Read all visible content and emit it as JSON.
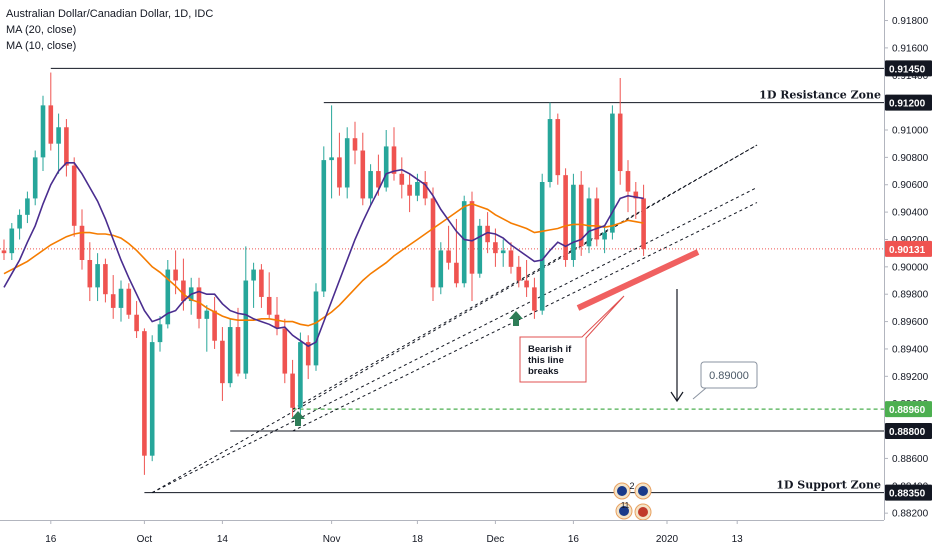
{
  "legend": {
    "title": "Australian Dollar/Canadian Dollar, 1D, IDC",
    "ma20": "MA (20, close)",
    "ma10": "MA (10, close)"
  },
  "colors": {
    "bull": "#26a69a",
    "bear": "#ef5350",
    "ma10": "#4a2d8f",
    "ma20": "#f57c00",
    "last_price": "#ef5350",
    "support_target": "#4caf50",
    "trend_zone": "#f06060"
  },
  "chart_data": {
    "type": "candlestick",
    "title": "Australian Dollar/Canadian Dollar, 1D, IDC",
    "y_axis": {
      "range": [
        0.8815,
        0.9195
      ],
      "ticks": [
        0.918,
        0.916,
        0.914,
        0.912,
        0.91,
        0.908,
        0.906,
        0.904,
        0.902,
        0.9,
        0.898,
        0.896,
        0.894,
        0.892,
        0.89,
        0.888,
        0.886,
        0.884,
        0.882
      ],
      "tick_labels": [
        "0.91800",
        "0.91600",
        "0.91400",
        "0.91200",
        "0.91000",
        "0.90800",
        "0.90600",
        "0.90400",
        "0.90200",
        "0.90000",
        "0.89800",
        "0.89600",
        "0.89400",
        "0.89200",
        "0.89000",
        "0.88800",
        "0.88600",
        "0.88400",
        "0.88200"
      ]
    },
    "x_axis": {
      "tick_labels": [
        {
          "label": "16",
          "bar": 6
        },
        {
          "label": "Oct",
          "bar": 18
        },
        {
          "label": "14",
          "bar": 28
        },
        {
          "label": "Nov",
          "bar": 42
        },
        {
          "label": "18",
          "bar": 53
        },
        {
          "label": "Dec",
          "bar": 63
        },
        {
          "label": "16",
          "bar": 73
        },
        {
          "label": "2020",
          "bar": 85
        },
        {
          "label": "13",
          "bar": 94
        }
      ]
    },
    "candles": [
      [
        0.9012,
        0.902,
        0.9005,
        0.901
      ],
      [
        0.901,
        0.9032,
        0.9005,
        0.9028
      ],
      [
        0.9028,
        0.9042,
        0.902,
        0.9038
      ],
      [
        0.9038,
        0.9055,
        0.9032,
        0.905
      ],
      [
        0.905,
        0.9085,
        0.9045,
        0.908
      ],
      [
        0.908,
        0.9125,
        0.907,
        0.9118
      ],
      [
        0.9118,
        0.9142,
        0.9085,
        0.909
      ],
      [
        0.909,
        0.9112,
        0.9068,
        0.9102
      ],
      [
        0.9102,
        0.9108,
        0.9066,
        0.9074
      ],
      [
        0.9074,
        0.908,
        0.9022,
        0.903
      ],
      [
        0.903,
        0.9042,
        0.8998,
        0.9005
      ],
      [
        0.9005,
        0.9018,
        0.8975,
        0.8985
      ],
      [
        0.8985,
        0.901,
        0.8975,
        0.9002
      ],
      [
        0.9002,
        0.9006,
        0.8974,
        0.898
      ],
      [
        0.898,
        0.8994,
        0.8962,
        0.897
      ],
      [
        0.897,
        0.899,
        0.896,
        0.8984
      ],
      [
        0.8984,
        0.8988,
        0.8962,
        0.8965
      ],
      [
        0.8965,
        0.8975,
        0.8948,
        0.8953
      ],
      [
        0.8953,
        0.8955,
        0.8848,
        0.8862
      ],
      [
        0.8862,
        0.895,
        0.8858,
        0.8945
      ],
      [
        0.8945,
        0.8964,
        0.8938,
        0.8958
      ],
      [
        0.8958,
        0.9005,
        0.8955,
        0.8998
      ],
      [
        0.8998,
        0.9012,
        0.898,
        0.899
      ],
      [
        0.899,
        0.9006,
        0.8968,
        0.8975
      ],
      [
        0.8975,
        0.8992,
        0.8965,
        0.8985
      ],
      [
        0.8985,
        0.8992,
        0.8955,
        0.8962
      ],
      [
        0.8962,
        0.8972,
        0.8938,
        0.8968
      ],
      [
        0.8968,
        0.8978,
        0.894,
        0.8946
      ],
      [
        0.8946,
        0.8956,
        0.8902,
        0.8915
      ],
      [
        0.8915,
        0.8962,
        0.8912,
        0.8956
      ],
      [
        0.8956,
        0.897,
        0.892,
        0.8922
      ],
      [
        0.8922,
        0.9015,
        0.8918,
        0.899
      ],
      [
        0.899,
        0.9003,
        0.897,
        0.8998
      ],
      [
        0.8998,
        0.9002,
        0.897,
        0.8978
      ],
      [
        0.8978,
        0.8996,
        0.8962,
        0.8965
      ],
      [
        0.8965,
        0.8978,
        0.895,
        0.8955
      ],
      [
        0.8955,
        0.8962,
        0.8915,
        0.8922
      ],
      [
        0.8922,
        0.8932,
        0.889,
        0.8897
      ],
      [
        0.8897,
        0.8952,
        0.889,
        0.8945
      ],
      [
        0.8945,
        0.895,
        0.8918,
        0.8928
      ],
      [
        0.8928,
        0.8988,
        0.8924,
        0.8982
      ],
      [
        0.8982,
        0.9088,
        0.8978,
        0.9078
      ],
      [
        0.9078,
        0.9118,
        0.905,
        0.908
      ],
      [
        0.908,
        0.9098,
        0.9052,
        0.9058
      ],
      [
        0.9058,
        0.9102,
        0.905,
        0.9094
      ],
      [
        0.9094,
        0.9106,
        0.9075,
        0.9085
      ],
      [
        0.9085,
        0.9098,
        0.9045,
        0.905
      ],
      [
        0.905,
        0.9075,
        0.9045,
        0.907
      ],
      [
        0.907,
        0.9082,
        0.9052,
        0.9058
      ],
      [
        0.9058,
        0.91,
        0.9055,
        0.9088
      ],
      [
        0.9088,
        0.9102,
        0.9063,
        0.9068
      ],
      [
        0.9068,
        0.908,
        0.905,
        0.906
      ],
      [
        0.906,
        0.9068,
        0.904,
        0.9052
      ],
      [
        0.9052,
        0.9068,
        0.9048,
        0.9062
      ],
      [
        0.9062,
        0.907,
        0.9045,
        0.905
      ],
      [
        0.905,
        0.9058,
        0.8975,
        0.8985
      ],
      [
        0.8985,
        0.9018,
        0.898,
        0.9012
      ],
      [
        0.9012,
        0.903,
        0.8998,
        0.9003
      ],
      [
        0.9003,
        0.9035,
        0.8985,
        0.8988
      ],
      [
        0.8988,
        0.9052,
        0.8985,
        0.9048
      ],
      [
        0.9048,
        0.9055,
        0.8975,
        0.8995
      ],
      [
        0.8995,
        0.9035,
        0.8992,
        0.903
      ],
      [
        0.903,
        0.904,
        0.901,
        0.9018
      ],
      [
        0.9018,
        0.9028,
        0.9,
        0.901
      ],
      [
        0.901,
        0.902,
        0.9,
        0.9012
      ],
      [
        0.9012,
        0.9018,
        0.8995,
        0.9
      ],
      [
        0.9,
        0.9008,
        0.8985,
        0.899
      ],
      [
        0.899,
        0.9005,
        0.8978,
        0.8985
      ],
      [
        0.8985,
        0.8992,
        0.8962,
        0.8968
      ],
      [
        0.8968,
        0.9068,
        0.8965,
        0.9062
      ],
      [
        0.9062,
        0.912,
        0.9058,
        0.9108
      ],
      [
        0.9108,
        0.9112,
        0.906,
        0.9067
      ],
      [
        0.9067,
        0.9072,
        0.9,
        0.9005
      ],
      [
        0.9005,
        0.9068,
        0.9,
        0.906
      ],
      [
        0.906,
        0.907,
        0.9008,
        0.9015
      ],
      [
        0.9015,
        0.9058,
        0.901,
        0.905
      ],
      [
        0.905,
        0.9058,
        0.9015,
        0.902
      ],
      [
        0.902,
        0.903,
        0.901,
        0.9025
      ],
      [
        0.9025,
        0.9118,
        0.902,
        0.9112
      ],
      [
        0.9112,
        0.9138,
        0.906,
        0.907
      ],
      [
        0.907,
        0.9078,
        0.904,
        0.9055
      ],
      [
        0.9055,
        0.9062,
        0.9035,
        0.905
      ],
      [
        0.905,
        0.906,
        0.9008,
        0.9013
      ]
    ],
    "ma10": [
      0.8985,
      0.8995,
      0.9005,
      0.9018,
      0.903,
      0.9046,
      0.906,
      0.907,
      0.9076,
      0.9076,
      0.9068,
      0.9058,
      0.9048,
      0.9035,
      0.902,
      0.9005,
      0.8992,
      0.898,
      0.8968,
      0.896,
      0.8962,
      0.8966,
      0.8968,
      0.8975,
      0.898,
      0.8982,
      0.898,
      0.898,
      0.8973,
      0.8968,
      0.8966,
      0.8965,
      0.8962,
      0.896,
      0.8958,
      0.8955,
      0.8956,
      0.895,
      0.8946,
      0.8942,
      0.8945,
      0.896,
      0.8975,
      0.899,
      0.9005,
      0.902,
      0.9033,
      0.9045,
      0.9056,
      0.9068,
      0.907,
      0.9071,
      0.9068,
      0.9064,
      0.906,
      0.9052,
      0.9042,
      0.9034,
      0.9026,
      0.902,
      0.9019,
      0.9022,
      0.9025,
      0.9024,
      0.9021,
      0.9016,
      0.9012,
      0.9008,
      0.9004,
      0.9005,
      0.9012,
      0.9018,
      0.9015,
      0.9018,
      0.902,
      0.9026,
      0.9028,
      0.903,
      0.904,
      0.905,
      0.9052,
      0.9051,
      0.905
    ],
    "ma20": [
      0.8995,
      0.8998,
      0.9001,
      0.9004,
      0.9008,
      0.9012,
      0.9016,
      0.9019,
      0.9022,
      0.9024,
      0.9025,
      0.9025,
      0.9024,
      0.9024,
      0.9023,
      0.9021,
      0.9017,
      0.9012,
      0.9006,
      0.9,
      0.8996,
      0.8991,
      0.8986,
      0.898,
      0.8976,
      0.8974,
      0.897,
      0.8967,
      0.8964,
      0.8962,
      0.8961,
      0.8961,
      0.8961,
      0.8962,
      0.8962,
      0.8961,
      0.896,
      0.896,
      0.8958,
      0.8957,
      0.8959,
      0.8963,
      0.8967,
      0.8972,
      0.8978,
      0.8984,
      0.899,
      0.8995,
      0.8999,
      0.9003,
      0.9008,
      0.9012,
      0.9016,
      0.902,
      0.9024,
      0.9028,
      0.9032,
      0.9036,
      0.904,
      0.9044,
      0.9046,
      0.9044,
      0.9042,
      0.9038,
      0.9035,
      0.9032,
      0.903,
      0.9028,
      0.9025,
      0.9026,
      0.9027,
      0.9028,
      0.903,
      0.9031,
      0.9031,
      0.903,
      0.903,
      0.9029,
      0.903,
      0.9032,
      0.9034,
      0.9033,
      0.9032
    ],
    "levels": [
      {
        "name": "resistance-high",
        "value": 0.9145,
        "label": "0.91450",
        "style": "solid",
        "start_bar": 6
      },
      {
        "name": "resistance-zone",
        "value": 0.912,
        "label": "0.91200",
        "style": "solid",
        "start_bar": 41,
        "text": "1D Resistance Zone"
      },
      {
        "name": "target-level",
        "value": 0.8896,
        "label": "0.88960",
        "style": "dashed",
        "start_bar": 37
      },
      {
        "name": "low-level",
        "value": 0.888,
        "label": "0.88800",
        "style": "solid",
        "start_bar": 29
      },
      {
        "name": "support-zone",
        "value": 0.8835,
        "label": "0.88350",
        "style": "solid",
        "start_bar": 18,
        "text": "1D Support Zone"
      }
    ],
    "last_price": {
      "value": 0.90131,
      "label": "0.90131"
    },
    "annotations": {
      "callout": [
        "Bearish if",
        "this line",
        "breaks"
      ],
      "target_box": "0.89000",
      "event_count": "2",
      "event_count_2": "11"
    }
  }
}
